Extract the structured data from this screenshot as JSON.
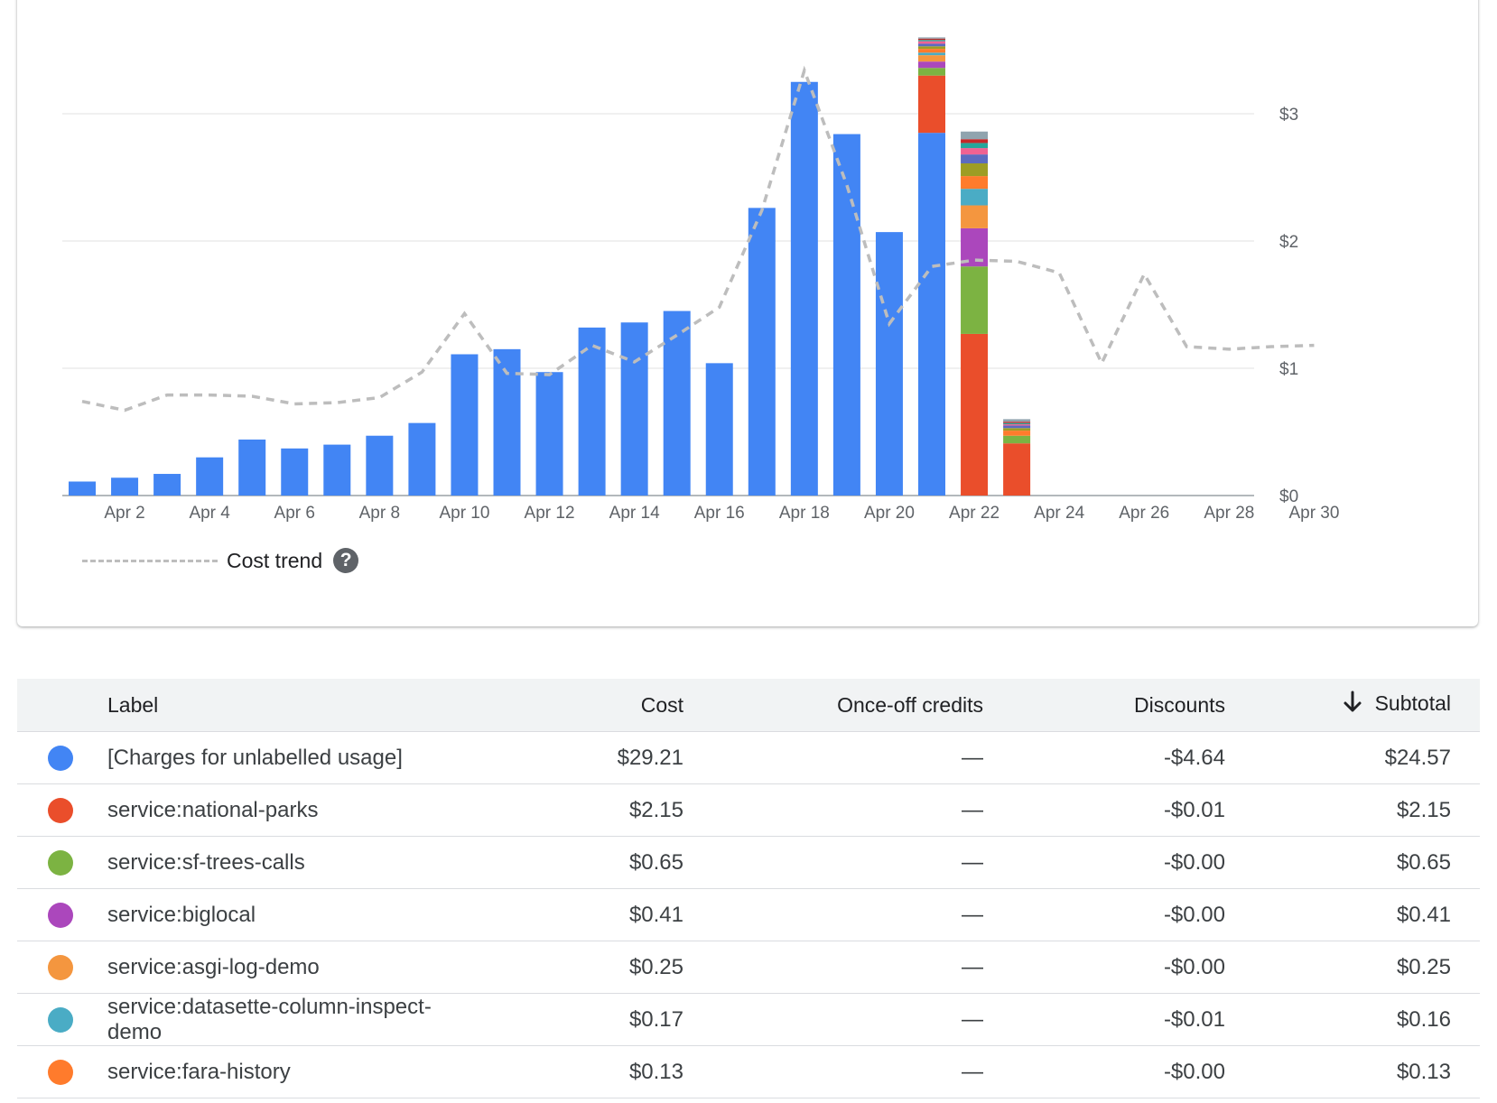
{
  "chart_data": {
    "type": "bar",
    "stacked": true,
    "categories": [
      "Apr 1",
      "Apr 2",
      "Apr 3",
      "Apr 4",
      "Apr 5",
      "Apr 6",
      "Apr 7",
      "Apr 8",
      "Apr 9",
      "Apr 10",
      "Apr 11",
      "Apr 12",
      "Apr 13",
      "Apr 14",
      "Apr 15",
      "Apr 16",
      "Apr 17",
      "Apr 18",
      "Apr 19",
      "Apr 20",
      "Apr 21",
      "Apr 22",
      "Apr 23",
      "Apr 24",
      "Apr 25",
      "Apr 26",
      "Apr 27",
      "Apr 28",
      "Apr 29",
      "Apr 30"
    ],
    "x_tick_labels": [
      "Apr 2",
      "Apr 4",
      "Apr 6",
      "Apr 8",
      "Apr 10",
      "Apr 12",
      "Apr 14",
      "Apr 16",
      "Apr 18",
      "Apr 20",
      "Apr 22",
      "Apr 24",
      "Apr 26",
      "Apr 28",
      "Apr 30"
    ],
    "y_tick_labels": [
      "$0",
      "$1",
      "$2",
      "$3"
    ],
    "ylim": [
      0,
      3.75
    ],
    "grid": true,
    "y_axis_position": "right",
    "legend_position": "bottom-left",
    "series": [
      {
        "name": "[Charges for unlabelled usage]",
        "color": "#4285f4",
        "values": [
          0.11,
          0.14,
          0.17,
          0.3,
          0.44,
          0.37,
          0.4,
          0.47,
          0.57,
          1.11,
          1.15,
          0.97,
          1.32,
          1.36,
          1.45,
          1.04,
          2.26,
          3.25,
          2.84,
          2.07,
          2.85,
          0,
          0,
          0,
          0,
          0,
          0,
          0,
          0,
          0
        ]
      },
      {
        "name": "service:national-parks",
        "color": "#ea4e2b",
        "values": [
          0,
          0,
          0,
          0,
          0,
          0,
          0,
          0,
          0,
          0,
          0,
          0,
          0,
          0,
          0,
          0,
          0,
          0,
          0,
          0,
          0.45,
          1.27,
          0.41,
          0,
          0,
          0,
          0,
          0,
          0,
          0
        ]
      },
      {
        "name": "service:sf-trees-calls",
        "color": "#7cb342",
        "values": [
          0,
          0,
          0,
          0,
          0,
          0,
          0,
          0,
          0,
          0,
          0,
          0,
          0,
          0,
          0,
          0,
          0,
          0,
          0,
          0,
          0.06,
          0.53,
          0.06,
          0,
          0,
          0,
          0,
          0,
          0,
          0
        ]
      },
      {
        "name": "service:biglocal",
        "color": "#ab47bc",
        "values": [
          0,
          0,
          0,
          0,
          0,
          0,
          0,
          0,
          0,
          0,
          0,
          0,
          0,
          0,
          0,
          0,
          0,
          0,
          0,
          0,
          0.05,
          0.3,
          0,
          0,
          0,
          0,
          0,
          0,
          0,
          0
        ]
      },
      {
        "name": "service:asgi-log-demo",
        "color": "#f4963f",
        "values": [
          0,
          0,
          0,
          0,
          0,
          0,
          0,
          0,
          0,
          0,
          0,
          0,
          0,
          0,
          0,
          0,
          0,
          0,
          0,
          0,
          0.05,
          0.18,
          0,
          0,
          0,
          0,
          0,
          0,
          0,
          0
        ]
      },
      {
        "name": "service:datasette-column-inspect-demo",
        "color": "#4aacc5",
        "values": [
          0,
          0,
          0,
          0,
          0,
          0,
          0,
          0,
          0,
          0,
          0,
          0,
          0,
          0,
          0,
          0,
          0,
          0,
          0,
          0,
          0.02,
          0.13,
          0,
          0,
          0,
          0,
          0,
          0,
          0,
          0
        ]
      },
      {
        "name": "service:fara-history",
        "color": "#ff7b2c",
        "values": [
          0,
          0,
          0,
          0,
          0,
          0,
          0,
          0,
          0,
          0,
          0,
          0,
          0,
          0,
          0,
          0,
          0,
          0,
          0,
          0,
          0.03,
          0.1,
          0.04,
          0,
          0,
          0,
          0,
          0,
          0,
          0
        ]
      },
      {
        "color": "#9e9d24",
        "values": [
          0,
          0,
          0,
          0,
          0,
          0,
          0,
          0,
          0,
          0,
          0,
          0,
          0,
          0,
          0,
          0,
          0,
          0,
          0,
          0,
          0.02,
          0.1,
          0.02,
          0,
          0,
          0,
          0,
          0,
          0,
          0
        ]
      },
      {
        "color": "#5c6bc0",
        "values": [
          0,
          0,
          0,
          0,
          0,
          0,
          0,
          0,
          0,
          0,
          0,
          0,
          0,
          0,
          0,
          0,
          0,
          0,
          0,
          0,
          0.02,
          0.07,
          0.02,
          0,
          0,
          0,
          0,
          0,
          0,
          0
        ]
      },
      {
        "color": "#f06292",
        "values": [
          0,
          0,
          0,
          0,
          0,
          0,
          0,
          0,
          0,
          0,
          0,
          0,
          0,
          0,
          0,
          0,
          0,
          0,
          0,
          0,
          0.02,
          0.05,
          0.01,
          0,
          0,
          0,
          0,
          0,
          0,
          0
        ]
      },
      {
        "color": "#26a69a",
        "values": [
          0,
          0,
          0,
          0,
          0,
          0,
          0,
          0,
          0,
          0,
          0,
          0,
          0,
          0,
          0,
          0,
          0,
          0,
          0,
          0,
          0.01,
          0.04,
          0.01,
          0,
          0,
          0,
          0,
          0,
          0,
          0
        ]
      },
      {
        "color": "#c62828",
        "values": [
          0,
          0,
          0,
          0,
          0,
          0,
          0,
          0,
          0,
          0,
          0,
          0,
          0,
          0,
          0,
          0,
          0,
          0,
          0,
          0,
          0.01,
          0.03,
          0.01,
          0,
          0,
          0,
          0,
          0,
          0,
          0
        ]
      },
      {
        "color": "#90a4ae",
        "values": [
          0,
          0,
          0,
          0,
          0,
          0,
          0,
          0,
          0,
          0,
          0,
          0,
          0,
          0,
          0,
          0,
          0,
          0,
          0,
          0,
          0.01,
          0.06,
          0.02,
          0,
          0,
          0,
          0,
          0,
          0,
          0
        ]
      }
    ],
    "trend": {
      "name": "Cost trend",
      "style": "dashed",
      "color": "#bdbdbd",
      "values": [
        0.74,
        0.67,
        0.79,
        0.79,
        0.78,
        0.72,
        0.73,
        0.77,
        0.97,
        1.43,
        0.96,
        0.95,
        1.18,
        1.05,
        1.26,
        1.48,
        2.24,
        3.34,
        2.44,
        1.35,
        1.8,
        1.85,
        1.84,
        1.75,
        1.04,
        1.74,
        1.17,
        1.15,
        1.17,
        1.18
      ]
    }
  },
  "legend": {
    "label": "Cost trend",
    "help_glyph": "?"
  },
  "table": {
    "headers": {
      "label": "Label",
      "cost": "Cost",
      "credits": "Once-off credits",
      "discounts": "Discounts",
      "subtotal": "Subtotal"
    },
    "sort_column": "subtotal",
    "sort_direction": "descending",
    "rows": [
      {
        "color": "#4285f4",
        "label": "[Charges for unlabelled usage]",
        "cost": "$29.21",
        "credits": "—",
        "discounts": "-$4.64",
        "subtotal": "$24.57"
      },
      {
        "color": "#ea4e2b",
        "label": "service:national-parks",
        "cost": "$2.15",
        "credits": "—",
        "discounts": "-$0.01",
        "subtotal": "$2.15"
      },
      {
        "color": "#7cb342",
        "label": "service:sf-trees-calls",
        "cost": "$0.65",
        "credits": "—",
        "discounts": "-$0.00",
        "subtotal": "$0.65"
      },
      {
        "color": "#ab47bc",
        "label": "service:biglocal",
        "cost": "$0.41",
        "credits": "—",
        "discounts": "-$0.00",
        "subtotal": "$0.41"
      },
      {
        "color": "#f4963f",
        "label": "service:asgi-log-demo",
        "cost": "$0.25",
        "credits": "—",
        "discounts": "-$0.00",
        "subtotal": "$0.25"
      },
      {
        "color": "#4aacc5",
        "label": "service:datasette-column-inspect-demo",
        "cost": "$0.17",
        "credits": "—",
        "discounts": "-$0.01",
        "subtotal": "$0.16"
      },
      {
        "color": "#ff7b2c",
        "label": "service:fara-history",
        "cost": "$0.13",
        "credits": "—",
        "discounts": "-$0.00",
        "subtotal": "$0.13"
      }
    ]
  }
}
